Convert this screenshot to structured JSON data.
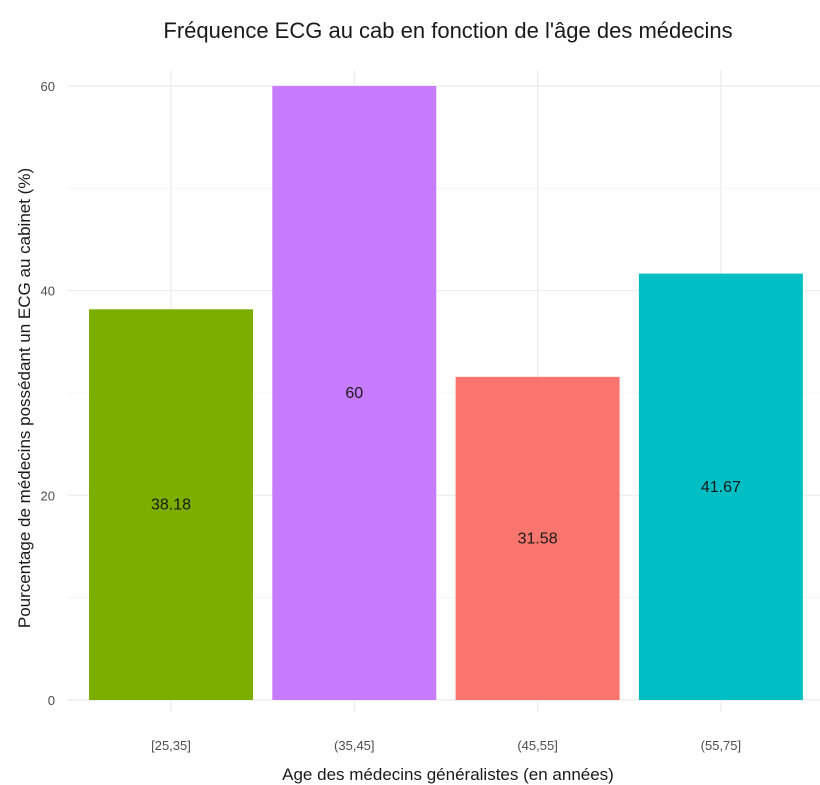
{
  "chart_data": {
    "type": "bar",
    "title": "Fréquence ECG au cab en fonction de l'âge des médecins",
    "xlabel": "Age des médecins généralistes (en années)",
    "ylabel": "Pourcentage de médecins possédant un ECG au cabinet (%)",
    "categories": [
      "[25,35]",
      "(35,45]",
      "(45,55]",
      "(55,75]"
    ],
    "values": [
      38.18,
      60,
      31.58,
      41.67
    ],
    "data_labels": [
      "38.18",
      "60",
      "31.58",
      "41.67"
    ],
    "colors": [
      "#7CAE00",
      "#C77CFF",
      "#F8766D",
      "#00BFC4"
    ],
    "ylim": [
      0,
      60
    ],
    "yticks": [
      0,
      20,
      40,
      60
    ],
    "grid": true,
    "legend": "none"
  }
}
